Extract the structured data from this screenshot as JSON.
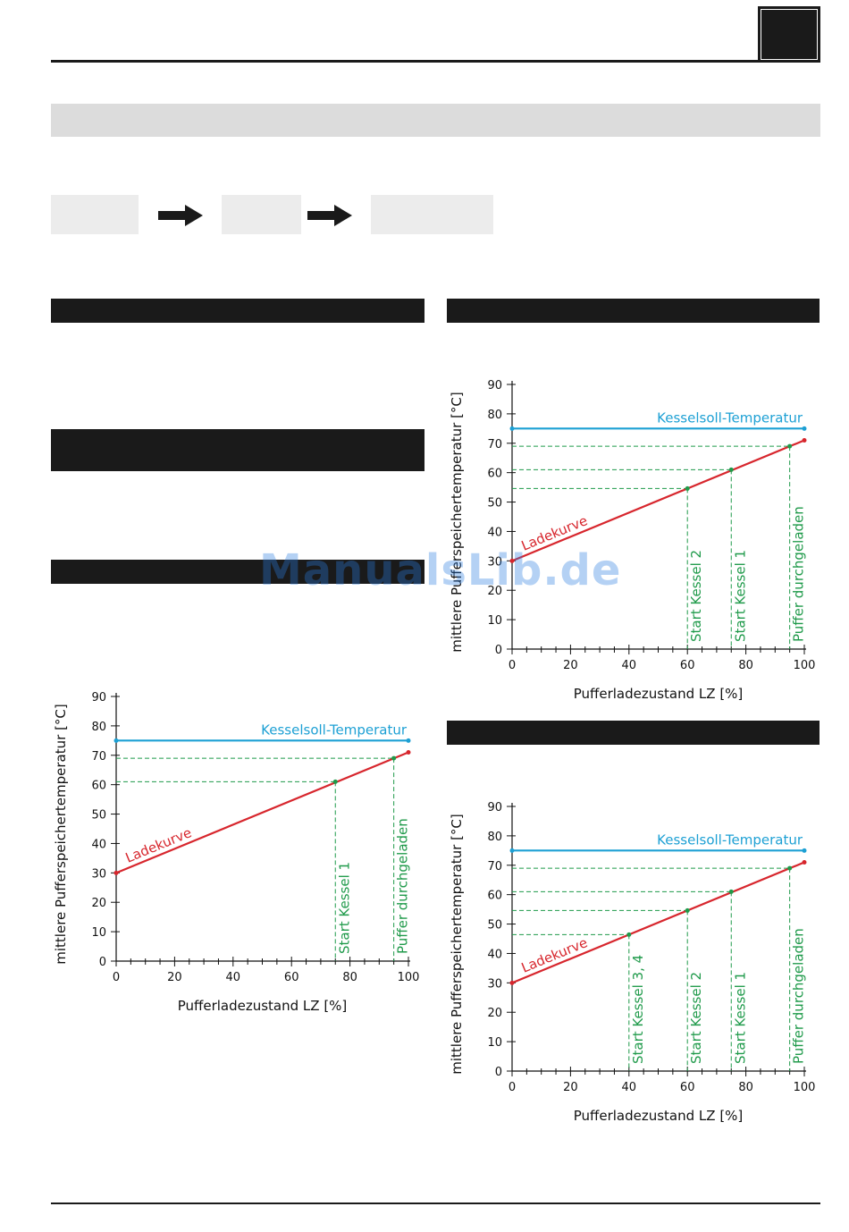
{
  "page": {
    "watermark": "ManualsLib.de"
  },
  "colors": {
    "ladekurve": "#d7262d",
    "kesselsoll": "#1da0d4",
    "start_lines": "#1f9a4a",
    "axis": "#111111"
  },
  "chart_data": [
    {
      "type": "line",
      "title": "",
      "xlabel": "Pufferladezustand LZ [%]",
      "ylabel": "mittlere Pufferspeichertemperatur [°C]",
      "xlim": [
        0,
        100
      ],
      "ylim": [
        0,
        90
      ],
      "xticks": [
        0,
        20,
        40,
        60,
        80,
        100
      ],
      "yticks": [
        0,
        10,
        20,
        30,
        40,
        50,
        60,
        70,
        80,
        90
      ],
      "series": [
        {
          "name": "Ladekurve",
          "points": [
            [
              0,
              30
            ],
            [
              100,
              71
            ]
          ]
        },
        {
          "name": "Kesselsoll-Temperatur",
          "points": [
            [
              0,
              75
            ],
            [
              100,
              75
            ]
          ]
        }
      ],
      "markers": [
        {
          "label": "Start Kessel 1",
          "x": 75,
          "y": 61
        },
        {
          "label": "Puffer durchgeladen",
          "x": 95,
          "y": 69
        }
      ],
      "grid": false
    },
    {
      "type": "line",
      "title": "",
      "xlabel": "Pufferladezustand LZ [%]",
      "ylabel": "mittlere Pufferspeichertemperatur [°C]",
      "xlim": [
        0,
        100
      ],
      "ylim": [
        0,
        90
      ],
      "xticks": [
        0,
        20,
        40,
        60,
        80,
        100
      ],
      "yticks": [
        0,
        10,
        20,
        30,
        40,
        50,
        60,
        70,
        80,
        90
      ],
      "series": [
        {
          "name": "Ladekurve",
          "points": [
            [
              0,
              30
            ],
            [
              100,
              71
            ]
          ]
        },
        {
          "name": "Kesselsoll-Temperatur",
          "points": [
            [
              0,
              75
            ],
            [
              100,
              75
            ]
          ]
        }
      ],
      "markers": [
        {
          "label": "Start Kessel 2",
          "x": 60,
          "y": 54.6
        },
        {
          "label": "Start Kessel 1",
          "x": 75,
          "y": 61
        },
        {
          "label": "Puffer durchgeladen",
          "x": 95,
          "y": 69
        }
      ],
      "grid": false
    },
    {
      "type": "line",
      "title": "",
      "xlabel": "Pufferladezustand LZ [%]",
      "ylabel": "mittlere Pufferspeichertemperatur [°C]",
      "xlim": [
        0,
        100
      ],
      "ylim": [
        0,
        90
      ],
      "xticks": [
        0,
        20,
        40,
        60,
        80,
        100
      ],
      "yticks": [
        0,
        10,
        20,
        30,
        40,
        50,
        60,
        70,
        80,
        90
      ],
      "series": [
        {
          "name": "Ladekurve",
          "points": [
            [
              0,
              30
            ],
            [
              100,
              71
            ]
          ]
        },
        {
          "name": "Kesselsoll-Temperatur",
          "points": [
            [
              0,
              75
            ],
            [
              100,
              75
            ]
          ]
        }
      ],
      "markers": [
        {
          "label": "Start Kessel 3, 4",
          "x": 40,
          "y": 46.4
        },
        {
          "label": "Start Kessel 2",
          "x": 60,
          "y": 54.6
        },
        {
          "label": "Start Kessel 1",
          "x": 75,
          "y": 61
        },
        {
          "label": "Puffer durchgeladen",
          "x": 95,
          "y": 69
        }
      ],
      "grid": false
    }
  ]
}
